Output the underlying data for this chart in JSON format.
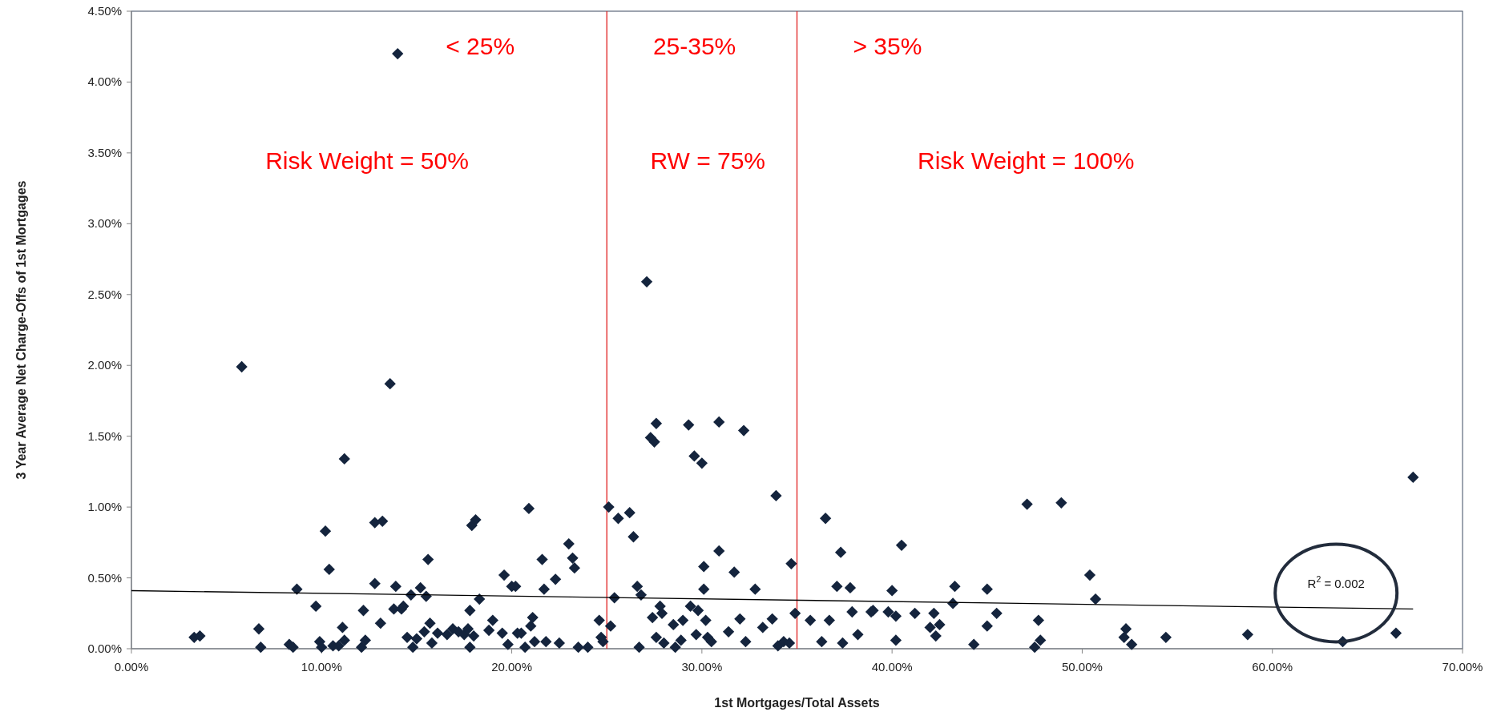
{
  "chart_data": {
    "type": "scatter",
    "xlabel": "1st Mortgages/Total Assets",
    "ylabel": "3 Year Average Net Charge-Offs of 1st Mortgages",
    "grid": false,
    "xlim": [
      0,
      70
    ],
    "ylim": [
      0,
      4.5
    ],
    "xticks": [
      {
        "value": 0,
        "label": "0.00%"
      },
      {
        "value": 10,
        "label": "10.00%"
      },
      {
        "value": 20,
        "label": "20.00%"
      },
      {
        "value": 30,
        "label": "30.00%"
      },
      {
        "value": 40,
        "label": "40.00%"
      },
      {
        "value": 50,
        "label": "50.00%"
      },
      {
        "value": 60,
        "label": "60.00%"
      },
      {
        "value": 70,
        "label": "70.00%"
      }
    ],
    "yticks": [
      {
        "value": 0,
        "label": "0.00%"
      },
      {
        "value": 0.5,
        "label": "0.50%"
      },
      {
        "value": 1,
        "label": "1.00%"
      },
      {
        "value": 1.5,
        "label": "1.50%"
      },
      {
        "value": 2,
        "label": "2.00%"
      },
      {
        "value": 2.5,
        "label": "2.50%"
      },
      {
        "value": 3,
        "label": "3.00%"
      },
      {
        "value": 3.5,
        "label": "3.50%"
      },
      {
        "value": 4,
        "label": "4.00%"
      },
      {
        "value": 4.5,
        "label": "4.50%"
      }
    ],
    "series": [
      {
        "marker": "diamond",
        "color": "#14243d",
        "x": [
          3.3,
          3.6,
          5.8,
          6.7,
          6.8,
          8.3,
          8.5,
          8.7,
          9.7,
          9.9,
          10.0,
          10.2,
          10.4,
          10.6,
          10.9,
          11.1,
          11.2,
          11.2,
          12.1,
          12.2,
          12.3,
          12.8,
          12.8,
          13.2,
          13.1,
          13.6,
          13.8,
          13.9,
          14.0,
          14.2,
          14.3,
          14.5,
          14.7,
          14.8,
          15.0,
          15.2,
          15.4,
          15.5,
          15.6,
          15.7,
          15.8,
          16.1,
          16.6,
          16.9,
          17.2,
          17.5,
          17.7,
          17.8,
          17.8,
          17.9,
          18.0,
          18.1,
          18.3,
          18.8,
          19.0,
          19.5,
          19.6,
          19.8,
          20.0,
          20.2,
          20.3,
          20.5,
          20.7,
          20.9,
          21.0,
          21.1,
          21.2,
          21.6,
          21.7,
          21.8,
          22.3,
          22.5,
          23.0,
          23.2,
          23.3,
          23.5,
          24.0,
          24.6,
          24.7,
          24.8,
          25.1,
          25.2,
          25.4,
          25.6,
          26.2,
          26.4,
          26.6,
          26.7,
          26.8,
          27.1,
          27.3,
          27.5,
          27.6,
          27.4,
          27.6,
          27.8,
          27.9,
          28.0,
          28.5,
          28.6,
          28.9,
          29.0,
          29.3,
          29.4,
          29.6,
          29.7,
          29.8,
          30.0,
          30.1,
          30.1,
          30.2,
          30.3,
          30.5,
          30.9,
          30.9,
          31.4,
          31.7,
          32.0,
          32.2,
          32.3,
          32.8,
          33.2,
          33.7,
          33.9,
          34.0,
          34.3,
          34.6,
          34.7,
          34.9,
          35.7,
          36.3,
          36.5,
          36.7,
          37.1,
          37.3,
          37.4,
          37.8,
          37.9,
          38.2,
          38.9,
          39.0,
          39.8,
          40.0,
          40.2,
          40.2,
          40.5,
          41.2,
          42.0,
          42.2,
          42.3,
          42.5,
          43.2,
          43.3,
          44.3,
          45.0,
          45.0,
          45.5,
          47.1,
          47.5,
          47.7,
          47.8,
          48.9,
          50.4,
          50.7,
          52.3,
          52.2,
          52.6,
          54.4,
          58.7,
          63.7,
          66.5,
          67.4
        ],
        "values": [
          0.08,
          0.09,
          1.99,
          0.14,
          0.01,
          0.03,
          0.01,
          0.42,
          0.3,
          0.05,
          0.01,
          0.83,
          0.56,
          0.02,
          0.02,
          0.15,
          1.34,
          0.06,
          0.01,
          0.27,
          0.06,
          0.89,
          0.46,
          0.9,
          0.18,
          1.87,
          0.28,
          0.44,
          4.2,
          0.28,
          0.3,
          0.08,
          0.38,
          0.01,
          0.07,
          0.43,
          0.12,
          0.37,
          0.63,
          0.18,
          0.04,
          0.11,
          0.1,
          0.14,
          0.12,
          0.1,
          0.14,
          0.27,
          0.01,
          0.87,
          0.09,
          0.91,
          0.35,
          0.13,
          0.2,
          0.11,
          0.52,
          0.03,
          0.44,
          0.44,
          0.11,
          0.11,
          0.01,
          0.99,
          0.16,
          0.22,
          0.05,
          0.63,
          0.42,
          0.05,
          0.49,
          0.04,
          0.74,
          0.64,
          0.57,
          0.01,
          0.01,
          0.2,
          0.08,
          0.05,
          1.0,
          0.16,
          0.36,
          0.92,
          0.96,
          0.79,
          0.44,
          0.01,
          0.38,
          2.59,
          1.49,
          1.46,
          1.59,
          0.22,
          0.08,
          0.3,
          0.25,
          0.04,
          0.17,
          0.01,
          0.06,
          0.2,
          1.58,
          0.3,
          1.36,
          0.1,
          0.27,
          1.31,
          0.42,
          0.58,
          0.2,
          0.08,
          0.05,
          0.69,
          1.6,
          0.12,
          0.54,
          0.21,
          1.54,
          0.05,
          0.42,
          0.15,
          0.21,
          1.08,
          0.02,
          0.05,
          0.04,
          0.6,
          0.25,
          0.2,
          0.05,
          0.92,
          0.2,
          0.44,
          0.68,
          0.04,
          0.43,
          0.26,
          0.1,
          0.26,
          0.27,
          0.26,
          0.41,
          0.23,
          0.06,
          0.73,
          0.25,
          0.15,
          0.25,
          0.09,
          0.17,
          0.32,
          0.44,
          0.03,
          0.42,
          0.16,
          0.25,
          1.02,
          0.01,
          0.2,
          0.06,
          1.03,
          0.52,
          0.35,
          0.14,
          0.08,
          0.03,
          0.08,
          0.1,
          0.05,
          0.11,
          1.21
        ]
      },
      {
        "type": "line",
        "color": "#000000",
        "x": [
          0,
          67.4
        ],
        "values": [
          0.41,
          0.28
        ]
      }
    ],
    "ref_lines": [
      {
        "axis": "x",
        "value": 25,
        "color": "#e02020"
      },
      {
        "axis": "x",
        "value": 35,
        "color": "#e02020"
      }
    ],
    "annotations": [
      "< 25%",
      "25-35%",
      "> 35%",
      "Risk Weight = 50%",
      "RW = 75%",
      "Risk Weight = 100%",
      "R$^{2}$ = 0.002"
    ]
  }
}
